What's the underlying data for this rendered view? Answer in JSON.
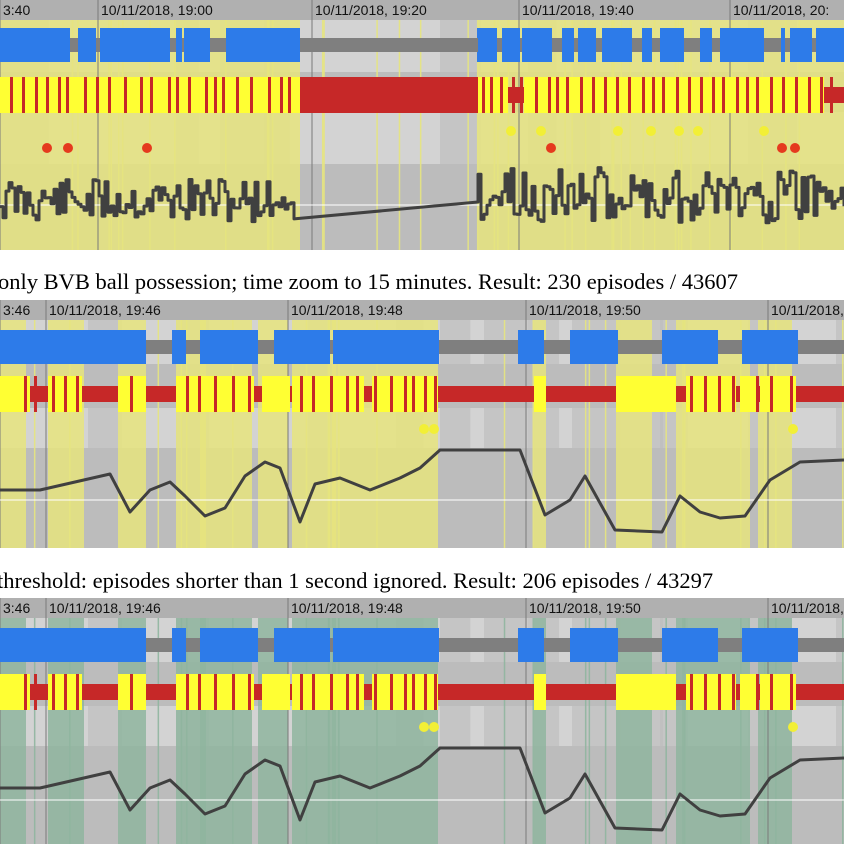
{
  "colors": {
    "background": "#c4c4c4",
    "band_light": "#d3d3d3",
    "band_dark": "#bcbcbc",
    "axis_bar": "#b0b0b0",
    "highlight": "#e6e47e",
    "highlight_green": "#8fb59f",
    "possession_home": "#2d7be9",
    "possession_gap": "#7f7f7f",
    "ball_zone_yellow": "#ffff33",
    "ball_zone_red": "#c62828",
    "event_red": "#e53a1e",
    "event_yellow": "#f2ef36",
    "line": "#404040"
  },
  "panels": [
    {
      "id": "overview",
      "ticks": [
        "3:40",
        "10/11/2018, 19:00",
        "10/11/2018, 19:20",
        "10/11/2018, 19:40",
        "10/11/2018, 20:"
      ]
    },
    {
      "id": "zoomed",
      "ticks": [
        "3:46",
        "10/11/2018, 19:46",
        "10/11/2018, 19:48",
        "10/11/2018, 19:50",
        "10/11/2018, 19:"
      ]
    },
    {
      "id": "threshold",
      "ticks": [
        "3:46",
        "10/11/2018, 19:46",
        "10/11/2018, 19:48",
        "10/11/2018, 19:50",
        "10/11/2018, 19:"
      ]
    }
  ],
  "captions": [
    "only BVB ball possession; time zoom to 15 minutes. Result: 230 episodes / 43607",
    " threshold: episodes shorter than 1 second ignored. Result: 206 episodes / 43297"
  ]
}
